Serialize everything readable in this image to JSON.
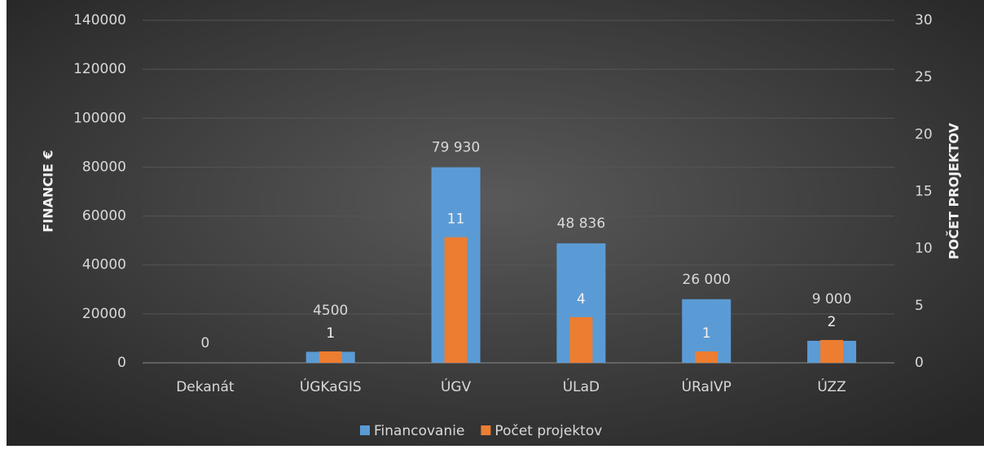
{
  "chart_data": {
    "type": "bar",
    "categories": [
      "Dekanát",
      "ÚGKaGIS",
      "ÚGV",
      "ÚLaD",
      "ÚRaIVP",
      "ÚZZ"
    ],
    "series": [
      {
        "name": "Financovanie",
        "color": "#5b9bd5",
        "values": [
          0,
          4500,
          79930,
          48836,
          26000,
          9000
        ],
        "value_labels": [
          "0",
          "4500",
          "79 930",
          "48 836",
          "26 000",
          "9 000"
        ]
      },
      {
        "name": "Počet projektov",
        "color": "#ed7d31",
        "axis": "y2",
        "values": [
          0,
          1,
          11,
          4,
          1,
          2
        ],
        "value_labels": [
          null,
          "1",
          "11",
          "4",
          "1",
          "2"
        ]
      }
    ],
    "ylabel": "FINANCIE €",
    "y2label": "POČET PROJEKTOV",
    "ylim": [
      0,
      140000
    ],
    "yticks": [
      0,
      20000,
      40000,
      60000,
      80000,
      100000,
      120000,
      140000
    ],
    "y2lim": [
      0,
      30
    ],
    "y2ticks": [
      0,
      5,
      10,
      15,
      20,
      25,
      30
    ],
    "grid": true,
    "legend": "bottom"
  }
}
